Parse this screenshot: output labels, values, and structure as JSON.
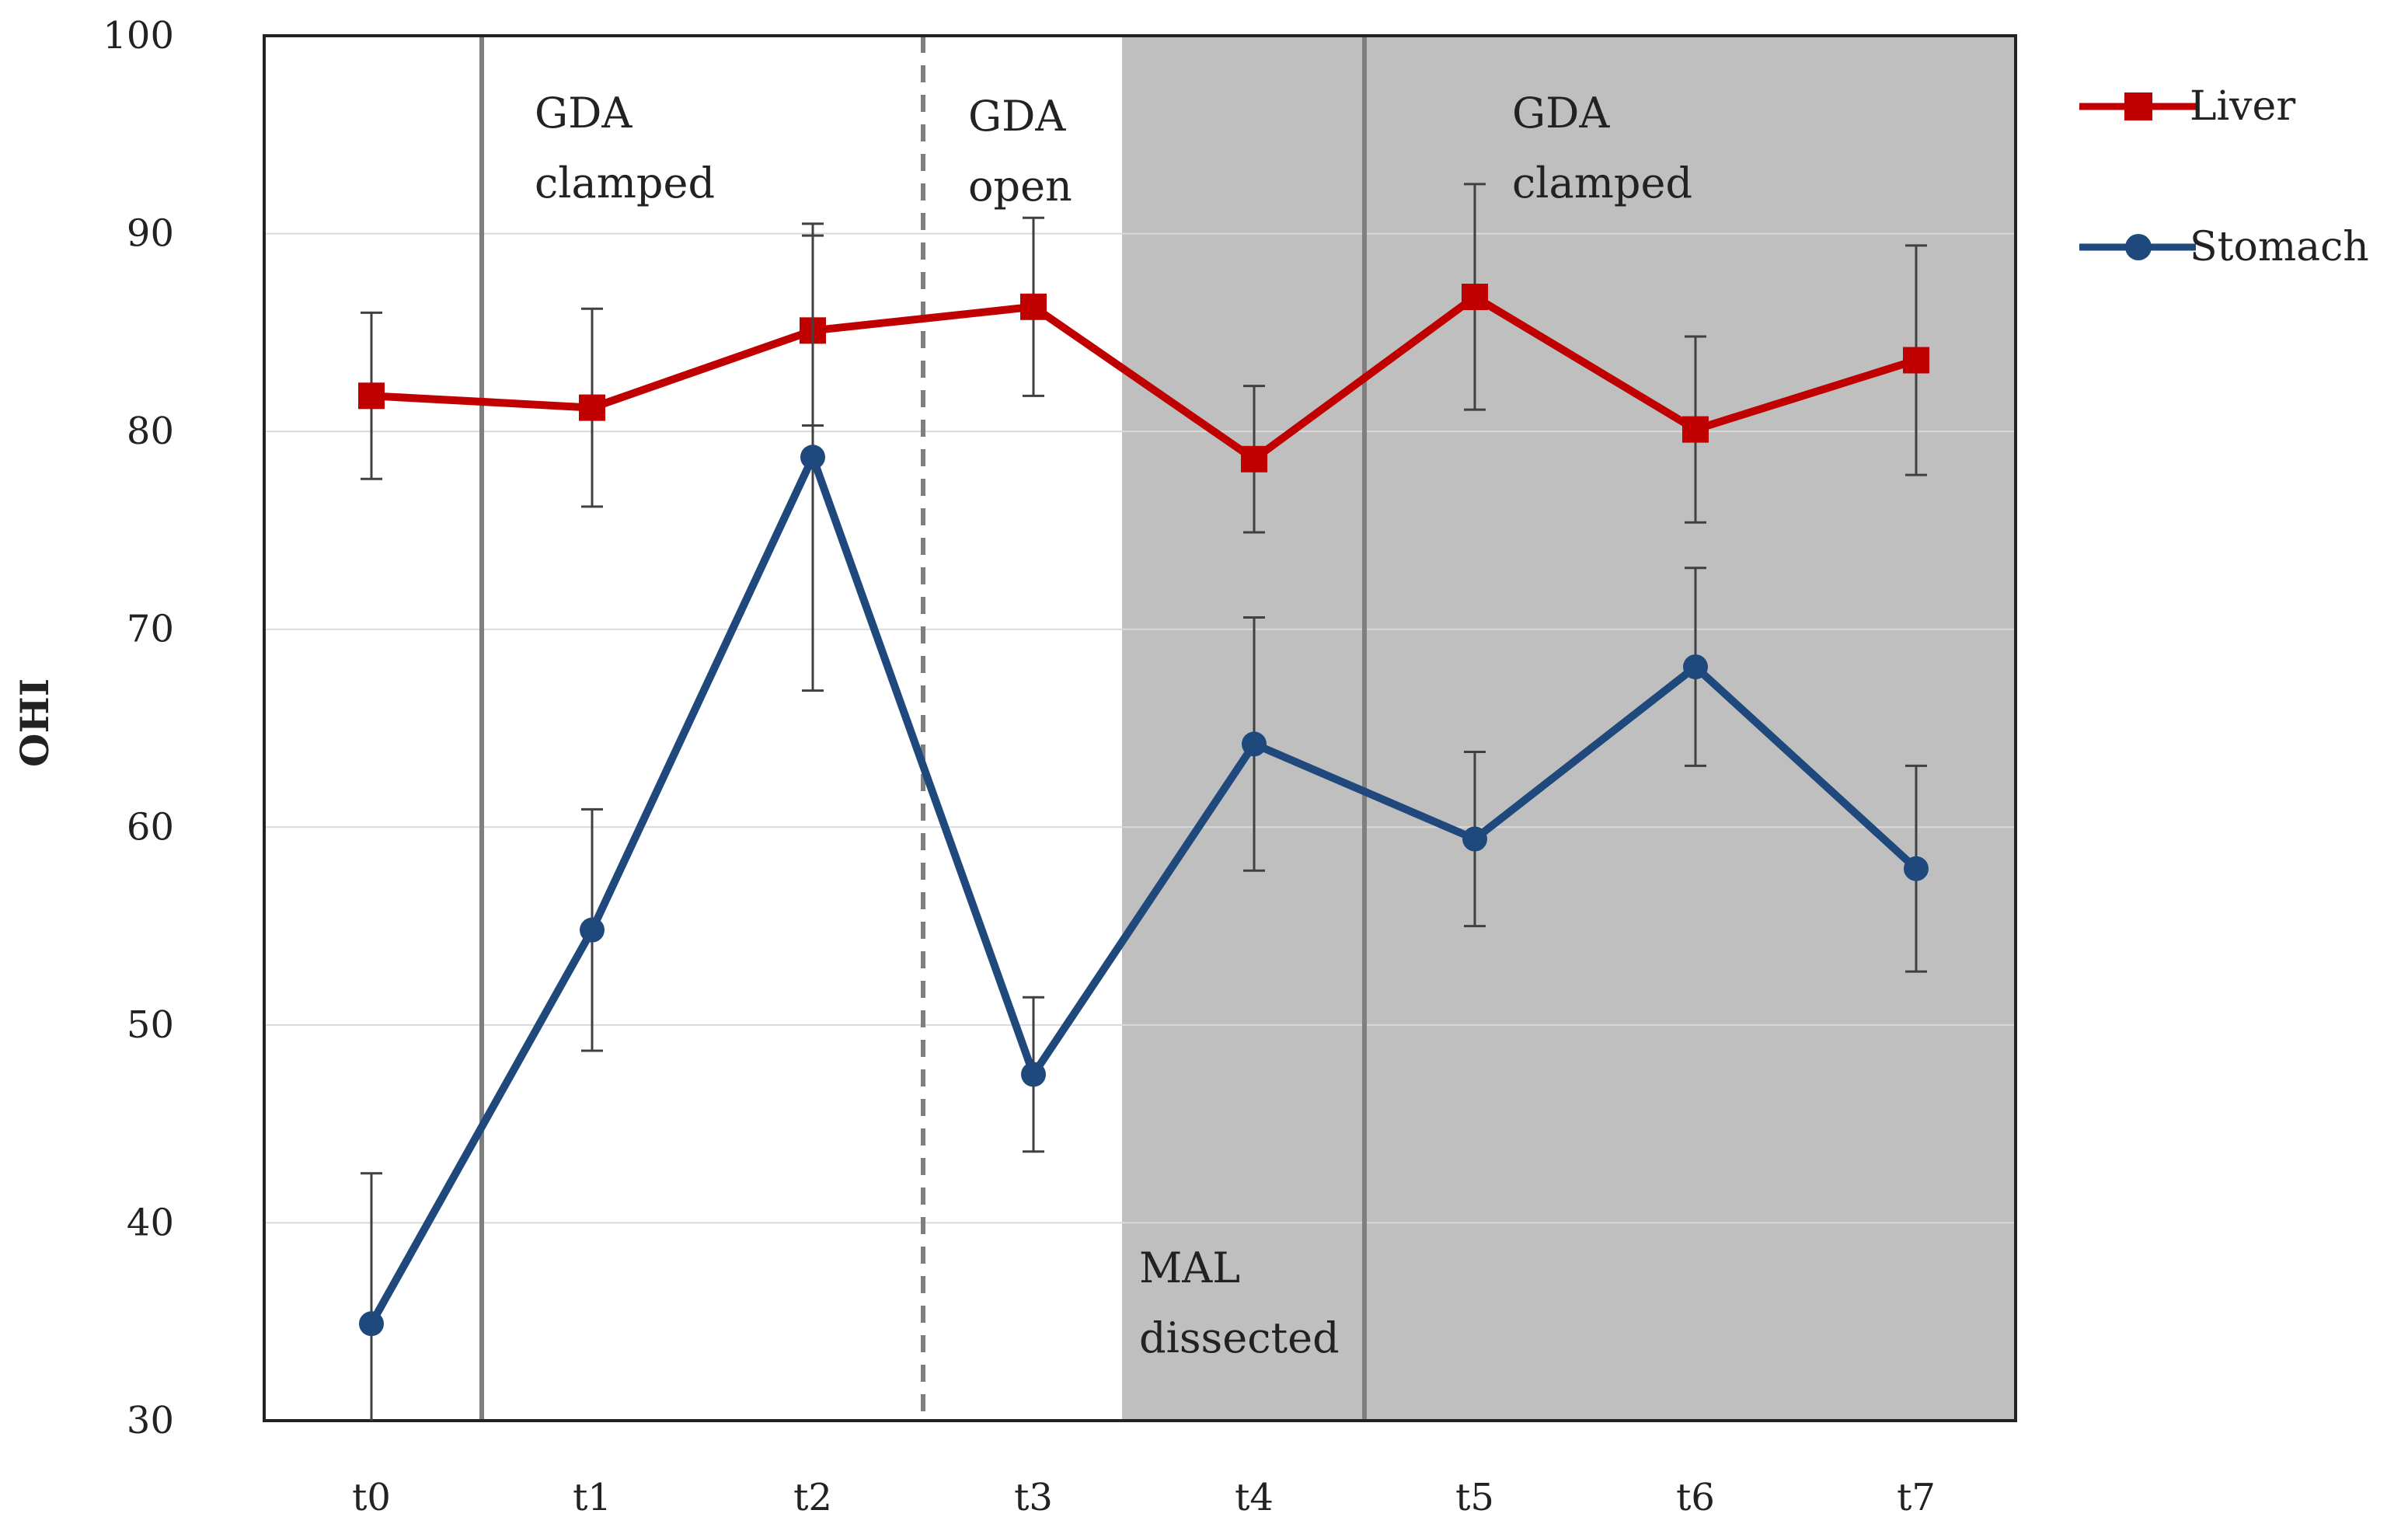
{
  "chart_data": {
    "type": "line",
    "title": "",
    "xlabel": "",
    "ylabel": "OHI",
    "ylim": [
      30,
      100
    ],
    "yticks": [
      30,
      40,
      50,
      60,
      70,
      80,
      90,
      100
    ],
    "categories": [
      "t0",
      "t1",
      "t2",
      "t3",
      "t4",
      "t5",
      "t6",
      "t7"
    ],
    "grid": true,
    "legend_position": "right",
    "series": [
      {
        "name": "Liver",
        "color": "#c00000",
        "marker": "square",
        "values": [
          81.8,
          81.2,
          85.1,
          86.3,
          78.6,
          86.8,
          80.1,
          83.6
        ],
        "error": [
          4.2,
          5.0,
          4.8,
          4.5,
          3.7,
          5.7,
          4.7,
          5.8
        ]
      },
      {
        "name": "Stomach",
        "color": "#1f497d",
        "marker": "circle",
        "values": [
          34.9,
          54.8,
          78.7,
          47.5,
          64.2,
          59.4,
          68.1,
          57.9
        ],
        "error": [
          7.6,
          6.1,
          11.8,
          3.9,
          6.4,
          4.4,
          5.0,
          5.2
        ]
      }
    ],
    "shaded_region": {
      "from": "between t3 and t4",
      "to": "end",
      "color": "#bfbfbf"
    },
    "event_lines": [
      {
        "between": [
          "t0",
          "t1"
        ],
        "style": "solid",
        "color": "#7f7f7f"
      },
      {
        "between": [
          "t2",
          "t3"
        ],
        "style": "dashed",
        "color": "#7f7f7f"
      },
      {
        "between": [
          "t4",
          "t5"
        ],
        "style": "solid",
        "color": "#7f7f7f"
      }
    ],
    "annotations": {
      "clamped_1": {
        "line1": "GDA",
        "line2": "clamped"
      },
      "open": {
        "line1": "GDA",
        "line2": "open"
      },
      "mal": {
        "line1": "MAL",
        "line2": "dissected"
      },
      "clamped_2": {
        "line1": "GDA",
        "line2": "clamped"
      }
    }
  }
}
